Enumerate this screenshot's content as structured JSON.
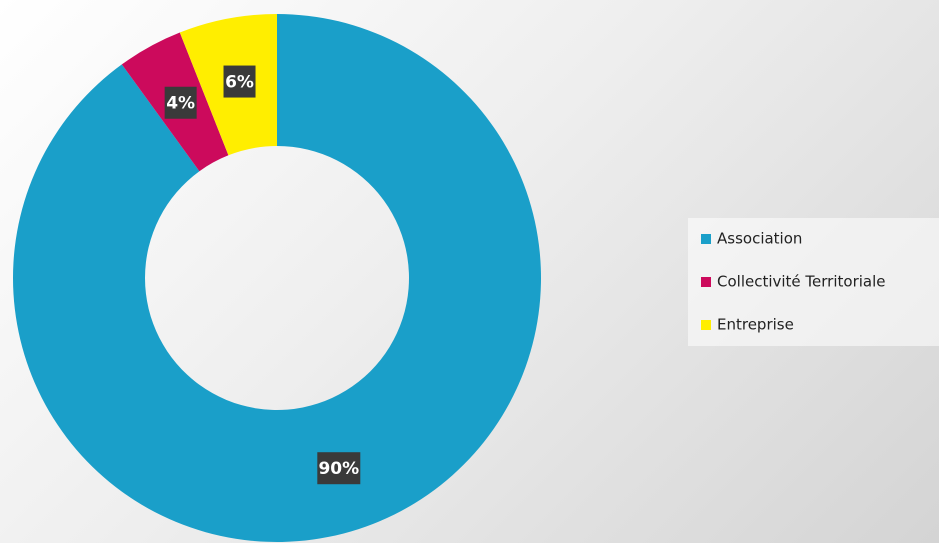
{
  "chart_data": {
    "type": "donut",
    "categories": [
      "Association",
      "Collectivité Territoriale",
      "Entreprise"
    ],
    "values": [
      90,
      4,
      6
    ],
    "value_labels": [
      "90%",
      "4%",
      "6%"
    ],
    "colors": [
      "#1a9fc9",
      "#cc0a5c",
      "#ffee00"
    ],
    "legend": "right"
  }
}
